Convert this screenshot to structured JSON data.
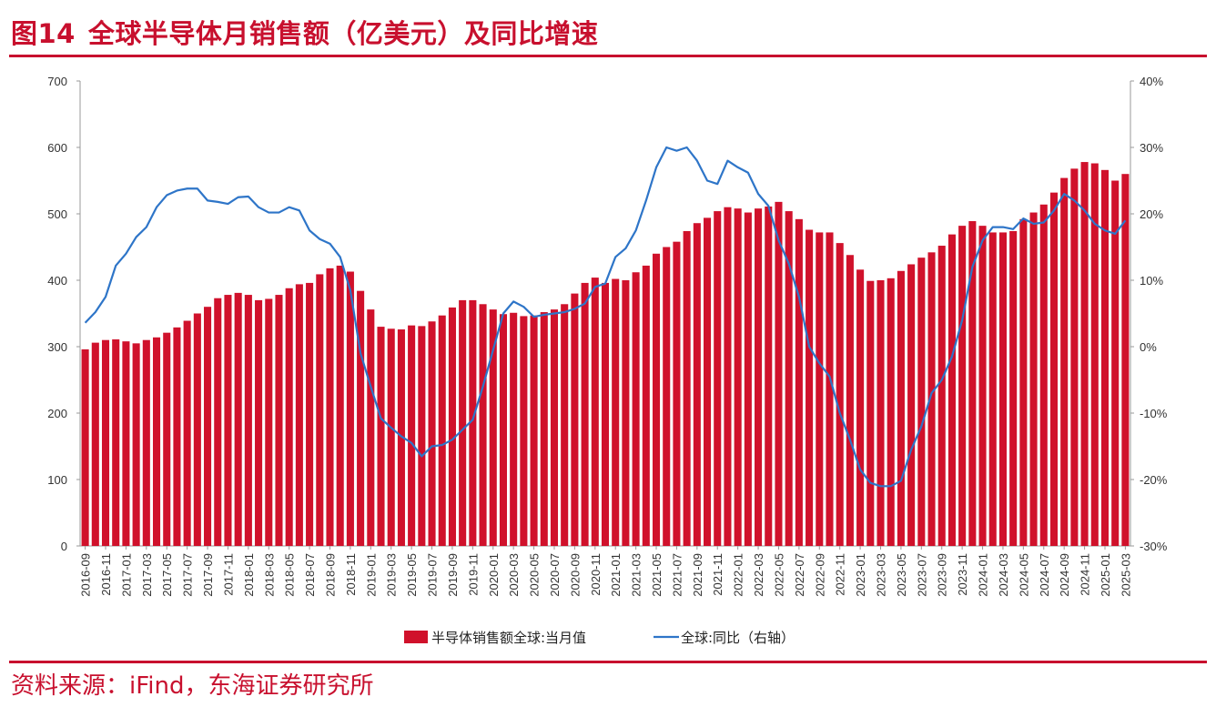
{
  "header": {
    "figure_number": "图14",
    "title": "全球半导体月销售额（亿美元）及同比增速"
  },
  "footer": {
    "source": "资料来源：iFind，东海证券研究所"
  },
  "colors": {
    "accent": "#c8102e",
    "bar": "#d0112b",
    "line": "#2e75c8"
  },
  "chart_data": {
    "type": "bar+line",
    "title": "全球半导体月销售额（亿美元）及同比增速",
    "categories": [
      "2016-09",
      "2016-10",
      "2016-11",
      "2016-12",
      "2017-01",
      "2017-02",
      "2017-03",
      "2017-04",
      "2017-05",
      "2017-06",
      "2017-07",
      "2017-08",
      "2017-09",
      "2017-10",
      "2017-11",
      "2017-12",
      "2018-01",
      "2018-02",
      "2018-03",
      "2018-04",
      "2018-05",
      "2018-06",
      "2018-07",
      "2018-08",
      "2018-09",
      "2018-10",
      "2018-11",
      "2018-12",
      "2019-01",
      "2019-02",
      "2019-03",
      "2019-04",
      "2019-05",
      "2019-06",
      "2019-07",
      "2019-08",
      "2019-09",
      "2019-10",
      "2019-11",
      "2019-12",
      "2020-01",
      "2020-02",
      "2020-03",
      "2020-04",
      "2020-05",
      "2020-06",
      "2020-07",
      "2020-08",
      "2020-09",
      "2020-10",
      "2020-11",
      "2020-12",
      "2021-01",
      "2021-02",
      "2021-03",
      "2021-04",
      "2021-05",
      "2021-06",
      "2021-07",
      "2021-08",
      "2021-09",
      "2021-10",
      "2021-11",
      "2021-12",
      "2022-01",
      "2022-02",
      "2022-03",
      "2022-04",
      "2022-05",
      "2022-06",
      "2022-07",
      "2022-08",
      "2022-09",
      "2022-10",
      "2022-11",
      "2022-12",
      "2023-01",
      "2023-02",
      "2023-03",
      "2023-04",
      "2023-05",
      "2023-06",
      "2023-07",
      "2023-08",
      "2023-09",
      "2023-10",
      "2023-11",
      "2023-12",
      "2024-01",
      "2024-02",
      "2024-03",
      "2024-04",
      "2024-05",
      "2024-06",
      "2024-07",
      "2024-08",
      "2024-09",
      "2024-10",
      "2024-11",
      "2024-12",
      "2025-01",
      "2025-02",
      "2025-03"
    ],
    "tick_labels": [
      "2016-09",
      "2016-11",
      "2017-01",
      "2017-03",
      "2017-05",
      "2017-07",
      "2017-09",
      "2017-11",
      "2018-01",
      "2018-03",
      "2018-05",
      "2018-07",
      "2018-09",
      "2018-11",
      "2019-01",
      "2019-03",
      "2019-05",
      "2019-07",
      "2019-09",
      "2019-11",
      "2020-01",
      "2020-03",
      "2020-05",
      "2020-07",
      "2020-09",
      "2020-11",
      "2021-01",
      "2021-03",
      "2021-05",
      "2021-07",
      "2021-09",
      "2021-11",
      "2022-01",
      "2022-03",
      "2022-05",
      "2022-07",
      "2022-09",
      "2022-11",
      "2023-01",
      "2023-03",
      "2023-05",
      "2023-07",
      "2023-09",
      "2023-11",
      "2024-01",
      "2024-03",
      "2024-05",
      "2024-07",
      "2024-09",
      "2024-11",
      "2025-01",
      "2025-03"
    ],
    "series": [
      {
        "name": "半导体销售额全球:当月值",
        "type": "bar",
        "axis": "left",
        "values": [
          296,
          306,
          310,
          311,
          308,
          305,
          310,
          314,
          321,
          329,
          339,
          350,
          360,
          373,
          378,
          381,
          378,
          370,
          372,
          378,
          388,
          394,
          396,
          409,
          418,
          422,
          413,
          384,
          356,
          330,
          327,
          326,
          332,
          331,
          338,
          347,
          359,
          370,
          370,
          364,
          356,
          349,
          351,
          346,
          347,
          352,
          356,
          364,
          380,
          396,
          404,
          396,
          402,
          400,
          412,
          422,
          440,
          450,
          458,
          474,
          486,
          494,
          504,
          510,
          508,
          502,
          508,
          511,
          518,
          504,
          492,
          476,
          472,
          472,
          456,
          438,
          416,
          399,
          400,
          403,
          414,
          424,
          434,
          442,
          452,
          469,
          482,
          489,
          482,
          472,
          472,
          474,
          492,
          502,
          514,
          532,
          554,
          568,
          578,
          576,
          566,
          550,
          560
        ]
      },
      {
        "name": "全球:同比（右轴）",
        "type": "line",
        "axis": "right",
        "values": [
          3.6,
          5.2,
          7.5,
          12.2,
          14.0,
          16.5,
          18.0,
          21.0,
          22.8,
          23.5,
          23.8,
          23.8,
          22.0,
          21.8,
          21.5,
          22.5,
          22.6,
          21.0,
          20.2,
          20.2,
          21.0,
          20.5,
          17.5,
          16.2,
          15.5,
          13.5,
          8.5,
          -1.0,
          -6.0,
          -10.8,
          -12.2,
          -13.5,
          -14.5,
          -16.5,
          -15.0,
          -14.8,
          -14.0,
          -12.5,
          -11.0,
          -6.0,
          -0.5,
          5.0,
          6.8,
          6.0,
          4.5,
          4.8,
          5.0,
          5.2,
          5.7,
          6.5,
          9.0,
          9.5,
          13.5,
          14.8,
          17.5,
          22.0,
          27.0,
          30.0,
          29.5,
          30.0,
          28.0,
          25.0,
          24.5,
          28.0,
          27.0,
          26.2,
          23.0,
          21.2,
          16.0,
          12.5,
          7.5,
          0.0,
          -2.5,
          -4.5,
          -10.0,
          -14.0,
          -18.5,
          -20.5,
          -21.0,
          -21.0,
          -20.2,
          -15.5,
          -12.0,
          -7.0,
          -5.0,
          -1.5,
          4.0,
          12.0,
          16.0,
          18.0,
          18.0,
          17.7,
          19.3,
          18.5,
          18.7,
          20.5,
          23.0,
          22.0,
          20.5,
          18.5,
          17.5,
          17.0,
          19.0
        ]
      }
    ],
    "y_left": {
      "min": 0,
      "max": 700,
      "ticks": [
        "0",
        "100",
        "200",
        "300",
        "400",
        "500",
        "600",
        "700"
      ]
    },
    "y_right": {
      "min": -30,
      "max": 40,
      "ticks": [
        "-30%",
        "-20%",
        "-10%",
        "0%",
        "10%",
        "20%",
        "30%",
        "40%"
      ]
    },
    "legend": {
      "position": "bottom",
      "items": [
        "半导体销售额全球:当月值",
        "全球:同比（右轴）"
      ]
    },
    "grid": false
  }
}
